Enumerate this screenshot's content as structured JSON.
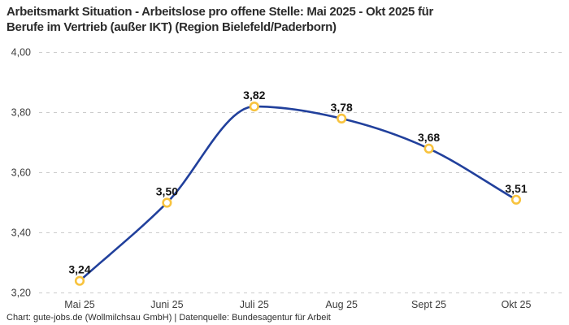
{
  "title": {
    "line1": "Arbeitsmarkt Situation - Arbeitslose pro offene Stelle: Mai 2025 - Okt 2025 für",
    "line2": "Berufe im Vertrieb (außer IKT) (Region Bielefeld/Paderborn)"
  },
  "footer": "Chart: gute-jobs.de (Wollmilchsau GmbH) | Datenquelle: Bundesagentur für Arbeit",
  "chart_data": {
    "type": "line",
    "title": "Arbeitsmarkt Situation - Arbeitslose pro offene Stelle: Mai 2025 - Okt 2025 für Berufe im Vertrieb (außer IKT) (Region Bielefeld/Paderborn)",
    "categories": [
      "Mai 25",
      "Juni 25",
      "Juli 25",
      "Aug 25",
      "Sept 25",
      "Okt 25"
    ],
    "values": [
      3.24,
      3.5,
      3.82,
      3.78,
      3.68,
      3.51
    ],
    "value_labels": [
      "3,24",
      "3,50",
      "3,82",
      "3,78",
      "3,68",
      "3,51"
    ],
    "y_ticks": [
      "3,20",
      "3,40",
      "3,60",
      "3,80",
      "4,00"
    ],
    "y_tick_values": [
      3.2,
      3.4,
      3.6,
      3.8,
      4.0
    ],
    "ylim": [
      3.2,
      4.0
    ],
    "xlabel": "",
    "ylabel": "",
    "grid": "horizontal-dashed",
    "legend": "none",
    "curve": "smooth"
  },
  "colors": {
    "line": "#21409c",
    "marker_ring": "#f8c33e",
    "marker_fill": "#ffffff",
    "grid": "#cccccc",
    "background": "#ffffff"
  }
}
